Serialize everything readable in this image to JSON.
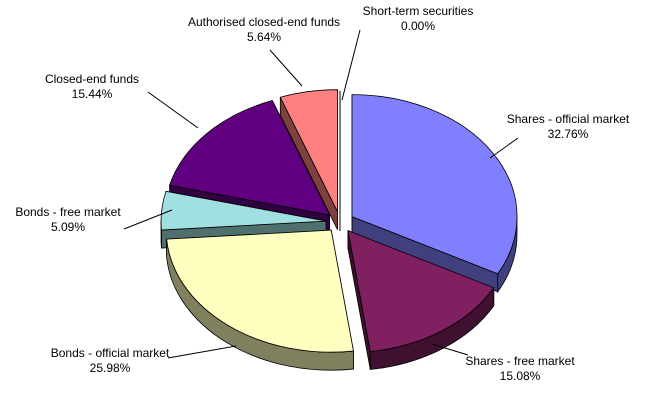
{
  "chart_data": {
    "type": "pie",
    "slices": [
      {
        "name": "Shares - official market",
        "value": 32.76,
        "label_value": "32.76%",
        "color": "#8080ff",
        "side_color": "#40407f"
      },
      {
        "name": "Shares - free market",
        "value": 15.08,
        "label_value": "15.08%",
        "color": "#802060",
        "side_color": "#401030"
      },
      {
        "name": "Bonds - official market",
        "value": 25.98,
        "label_value": "25.98%",
        "color": "#ffffc0",
        "side_color": "#80805f"
      },
      {
        "name": "Bonds - free market",
        "value": 5.09,
        "label_value": "5.09%",
        "color": "#a0e0e0",
        "side_color": "#507070"
      },
      {
        "name": "Closed-end funds",
        "value": 15.44,
        "label_value": "15.44%",
        "color": "#600080",
        "side_color": "#300040"
      },
      {
        "name": "Authorised closed-end funds",
        "value": 5.64,
        "label_value": "5.64%",
        "color": "#ff8080",
        "side_color": "#7f4040"
      },
      {
        "name": "Short-term securities",
        "value": 0.0,
        "label_value": "0.00%",
        "color": "#ffffff",
        "side_color": "#7f7f7f"
      }
    ],
    "style": "3d-exploded"
  }
}
